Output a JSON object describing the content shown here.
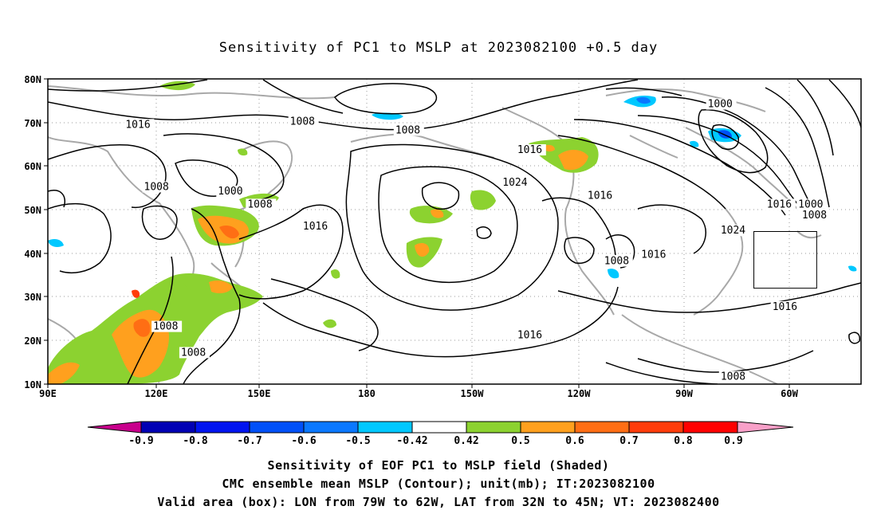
{
  "title": "Sensitivity of PC1 to MSLP at 2023082100 +0.5 day",
  "lat_labels": [
    "80N",
    "70N",
    "60N",
    "50N",
    "40N",
    "30N",
    "20N",
    "10N"
  ],
  "lon_labels": [
    "90E",
    "120E",
    "150E",
    "180",
    "150W",
    "120W",
    "90W",
    "60W"
  ],
  "contour_labels": [
    {
      "text": "1000",
      "lon": -91.5,
      "lat": 73.5
    },
    {
      "text": "1016",
      "lon": 111,
      "lat": 68.8
    },
    {
      "text": "1008",
      "lon": 155.5,
      "lat": 69.5
    },
    {
      "text": "1008",
      "lon": 184,
      "lat": 67.5
    },
    {
      "text": "1016",
      "lon": -143,
      "lat": 63
    },
    {
      "text": "1024",
      "lon": -147,
      "lat": 55.5
    },
    {
      "text": "1016",
      "lon": -124,
      "lat": 52.5
    },
    {
      "text": "1008",
      "lon": 116,
      "lat": 54.5
    },
    {
      "text": "1000",
      "lon": 136,
      "lat": 53.5
    },
    {
      "text": "1008",
      "lon": 144,
      "lat": 50.5
    },
    {
      "text": "1016",
      "lon": 159,
      "lat": 45.5
    },
    {
      "text": "1016",
      "lon": -75.5,
      "lat": 50.5
    },
    {
      "text": "1000",
      "lon": -67,
      "lat": 50.5
    },
    {
      "text": "1008",
      "lon": -66,
      "lat": 48
    },
    {
      "text": "1024",
      "lon": -88,
      "lat": 44.5
    },
    {
      "text": "1008",
      "lon": -119.5,
      "lat": 37.5
    },
    {
      "text": "1016",
      "lon": -109.5,
      "lat": 39
    },
    {
      "text": "1016",
      "lon": -74,
      "lat": 27
    },
    {
      "text": "1016",
      "lon": -143,
      "lat": 20.5
    },
    {
      "text": "1008",
      "lon": 118.5,
      "lat": 22.5
    },
    {
      "text": "1008",
      "lon": 126,
      "lat": 16.5
    },
    {
      "text": "1008",
      "lon": -88,
      "lat": 11
    }
  ],
  "colorbar": {
    "labels": [
      "-0.9",
      "-0.8",
      "-0.7",
      "-0.6",
      "-0.5",
      "-0.42",
      "0.42",
      "0.5",
      "0.6",
      "0.7",
      "0.8",
      "0.9"
    ],
    "colors": [
      "#0000b4",
      "#0014f0",
      "#0050f8",
      "#0a78ff",
      "#00c8ff",
      "#ffffff",
      "#8cd230",
      "#ffa01e",
      "#ff6e14",
      "#ff3c0a",
      "#ff0000"
    ],
    "low_color": "#c8008c",
    "high_color": "#f8a0c8"
  },
  "captions": [
    "Sensitivity of EOF PC1 to MSLP field (Shaded)",
    "CMC ensemble mean MSLP (Contour); unit(mb); IT:2023082100",
    "Valid area (box): LON from 79W to 62W, LAT from 32N to 45N; VT: 2023082400"
  ],
  "valid_box": {
    "lon_min": -79,
    "lon_max": -62,
    "lat_min": 32,
    "lat_max": 45
  }
}
